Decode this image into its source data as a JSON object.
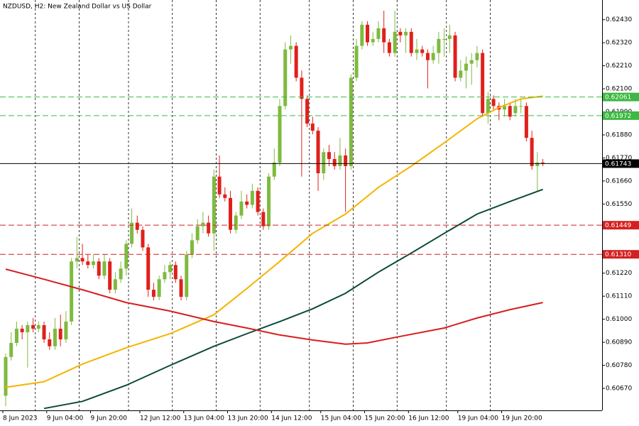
{
  "chart_data": {
    "type": "candlestick",
    "title": "NZDUSD, H2:  New Zealand Dollar vs US Dollar",
    "categories": [
      "8 Jun 2023",
      null,
      null,
      null,
      null,
      null,
      null,
      null,
      "9 Jun 04:00",
      null,
      null,
      null,
      null,
      null,
      null,
      null,
      "9 Jun 20:00",
      null,
      null,
      null,
      null,
      null,
      null,
      null,
      null,
      "12 Jun 12:00",
      null,
      null,
      null,
      null,
      null,
      null,
      null,
      "13 Jun 04:00",
      null,
      null,
      null,
      null,
      null,
      null,
      null,
      "13 Jun 20:00",
      null,
      null,
      null,
      null,
      null,
      null,
      null,
      "14 Jun 12:00",
      null,
      null,
      null,
      null,
      null,
      null,
      null,
      null,
      "15 Jun 04:00",
      null,
      null,
      null,
      null,
      null,
      null,
      null,
      "15 Jun 20:00",
      null,
      null,
      null,
      null,
      null,
      null,
      null,
      "16 Jun 12:00",
      null,
      null,
      null,
      null,
      null,
      null,
      null,
      null,
      "19 Jun 04:00",
      null,
      null,
      null,
      null,
      null,
      null,
      null,
      "19 Jun 20:00",
      null,
      null,
      null,
      null,
      null,
      null,
      null
    ],
    "open": [
      0.60635,
      0.6082,
      0.60887,
      0.60955,
      0.60938,
      0.60972,
      0.60955,
      0.60972,
      0.60904,
      0.60871,
      0.60955,
      0.60904,
      0.60989,
      0.61276,
      0.61292,
      0.61276,
      0.61259,
      0.61276,
      0.61208,
      0.61276,
      0.61141,
      0.61191,
      0.61242,
      0.6136,
      0.61461,
      0.61427,
      0.61343,
      0.61141,
      0.61107,
      0.61191,
      0.61225,
      0.61259,
      0.61191,
      0.61107,
      0.61309,
      0.61377,
      0.61444,
      0.61461,
      0.6141,
      0.61681,
      0.61596,
      0.61579,
      0.61427,
      0.61495,
      0.61562,
      0.61546,
      0.61613,
      0.61512,
      0.61444,
      0.61681,
      0.61748,
      0.62018,
      0.62288,
      0.62305,
      0.62153,
      0.62052,
      0.61934,
      0.619,
      0.61697,
      0.61798,
      0.61765,
      0.61731,
      0.61782,
      0.61731,
      0.62153,
      0.62305,
      0.62406,
      0.62322,
      0.62338,
      0.62389,
      0.62322,
      0.62271,
      0.62372,
      0.62355,
      0.62372,
      0.62271,
      0.62288,
      0.62271,
      0.62237,
      0.62271,
      0.62338,
      0.62338,
      0.62355,
      0.62153,
      0.62187,
      0.6222,
      0.62237,
      0.62271,
      0.61984,
      0.62052,
      0.62018,
      0.62001,
      0.62018,
      0.61984,
      0.62018,
      0.62018,
      0.61866,
      0.61731,
      0.61748
    ],
    "high": [
      0.60837,
      0.60938,
      0.60989,
      0.60972,
      0.60989,
      0.61006,
      0.60989,
      0.60989,
      0.60938,
      0.61006,
      0.61022,
      0.61039,
      0.61292,
      0.61394,
      0.6136,
      0.61309,
      0.61309,
      0.61292,
      0.61309,
      0.61292,
      0.61225,
      0.61276,
      0.61377,
      0.61529,
      0.61495,
      0.61444,
      0.6136,
      0.61174,
      0.61208,
      0.61259,
      0.61276,
      0.61276,
      0.61208,
      0.61326,
      0.6141,
      0.61478,
      0.61512,
      0.61495,
      0.61714,
      0.61782,
      0.6163,
      0.61613,
      0.61512,
      0.61613,
      0.61596,
      0.61647,
      0.6163,
      0.61529,
      0.61697,
      0.61815,
      0.62052,
      0.62322,
      0.62355,
      0.62322,
      0.62187,
      0.62069,
      0.61967,
      0.61917,
      0.61815,
      0.61832,
      0.61798,
      0.61866,
      0.61815,
      0.6217,
      0.62338,
      0.62423,
      0.62423,
      0.62372,
      0.62423,
      0.62473,
      0.62338,
      0.62473,
      0.62389,
      0.62389,
      0.62389,
      0.62338,
      0.62305,
      0.62288,
      0.62305,
      0.62372,
      0.62389,
      0.62406,
      0.62372,
      0.62237,
      0.62254,
      0.62271,
      0.62305,
      0.62288,
      0.62085,
      0.62069,
      0.62035,
      0.62052,
      0.62035,
      0.62052,
      0.62052,
      0.62035,
      0.619,
      0.61798,
      0.61765
    ],
    "low": [
      0.60584,
      0.60803,
      0.60871,
      0.60904,
      0.60769,
      0.60938,
      0.60938,
      0.60887,
      0.60854,
      0.60854,
      0.60871,
      0.60887,
      0.60972,
      0.61242,
      0.61259,
      0.61242,
      0.61242,
      0.61191,
      0.61191,
      0.61124,
      0.61124,
      0.61174,
      0.61208,
      0.61343,
      0.6141,
      0.61326,
      0.61107,
      0.6109,
      0.6109,
      0.61174,
      0.61191,
      0.61174,
      0.6109,
      0.6109,
      0.61292,
      0.6136,
      0.6141,
      0.61394,
      0.61326,
      0.61579,
      0.61562,
      0.6141,
      0.6141,
      0.61478,
      0.61529,
      0.61529,
      0.61495,
      0.61427,
      0.61427,
      0.61664,
      0.61731,
      0.62001,
      0.6222,
      0.62136,
      0.61681,
      0.61917,
      0.61883,
      0.61613,
      0.61664,
      0.61731,
      0.61714,
      0.61714,
      0.61512,
      0.61714,
      0.62136,
      0.62288,
      0.62305,
      0.62305,
      0.62322,
      0.62271,
      0.62254,
      0.62254,
      0.62322,
      0.62271,
      0.62254,
      0.62237,
      0.62254,
      0.62102,
      0.6222,
      0.6222,
      0.62254,
      0.62271,
      0.62136,
      0.62136,
      0.62102,
      0.62119,
      0.62203,
      0.61967,
      0.61934,
      0.62001,
      0.6195,
      0.61967,
      0.6195,
      0.61967,
      0.61984,
      0.61849,
      0.61714,
      0.61613,
      0.61731
    ],
    "close": [
      0.6082,
      0.60887,
      0.60955,
      0.60938,
      0.60972,
      0.60955,
      0.60972,
      0.60904,
      0.60871,
      0.60955,
      0.60904,
      0.60989,
      0.61276,
      0.61292,
      0.61276,
      0.61259,
      0.61276,
      0.61208,
      0.61276,
      0.61141,
      0.61191,
      0.61242,
      0.6136,
      0.61461,
      0.61427,
      0.61343,
      0.61141,
      0.61107,
      0.61191,
      0.61225,
      0.61259,
      0.61191,
      0.61107,
      0.61309,
      0.61377,
      0.61444,
      0.61461,
      0.6141,
      0.61681,
      0.61596,
      0.61579,
      0.61427,
      0.61495,
      0.61562,
      0.61546,
      0.61613,
      0.61512,
      0.61444,
      0.61681,
      0.61748,
      0.62018,
      0.62288,
      0.62305,
      0.62153,
      0.62052,
      0.61934,
      0.619,
      0.61697,
      0.61798,
      0.61765,
      0.61731,
      0.61782,
      0.61731,
      0.62153,
      0.62305,
      0.62406,
      0.62322,
      0.62338,
      0.62389,
      0.62322,
      0.62271,
      0.62372,
      0.62355,
      0.62372,
      0.62271,
      0.62288,
      0.62271,
      0.62237,
      0.62271,
      0.62338,
      0.62338,
      0.62355,
      0.62153,
      0.62187,
      0.6222,
      0.62237,
      0.62271,
      0.61984,
      0.62052,
      0.62018,
      0.62001,
      0.62018,
      0.61967,
      0.62018,
      0.62018,
      0.61866,
      0.61731,
      0.61748,
      0.61743
    ],
    "up_color": "#7fba3f",
    "down_color": "#e0201b",
    "lines": [
      {
        "color": "#f5b400",
        "x": [
          0,
          7,
          14,
          22,
          30,
          38,
          44,
          50,
          56,
          62,
          68,
          74,
          80,
          86,
          90,
          94,
          98
        ],
        "values": [
          0.60675,
          0.60702,
          0.60786,
          0.60864,
          0.60931,
          0.61022,
          0.61147,
          0.61276,
          0.6141,
          0.61502,
          0.6163,
          0.61731,
          0.61842,
          0.61957,
          0.62011,
          0.62052,
          0.62065
        ]
      },
      {
        "color": "#0b4a3a",
        "x": [
          7,
          14,
          22,
          30,
          38,
          44,
          50,
          56,
          62,
          68,
          74,
          80,
          86,
          92,
          98
        ],
        "values": [
          0.60574,
          0.60608,
          0.60685,
          0.6078,
          0.60871,
          0.60931,
          0.60989,
          0.6105,
          0.61124,
          0.61225,
          0.61316,
          0.6141,
          0.61502,
          0.61562,
          0.6162
        ]
      },
      {
        "color": "#d81e1e",
        "x": [
          0,
          7,
          14,
          22,
          30,
          38,
          44,
          50,
          56,
          62,
          66,
          72,
          80,
          86,
          92,
          98
        ],
        "values": [
          0.61239,
          0.61191,
          0.61141,
          0.6108,
          0.61039,
          0.60989,
          0.60958,
          0.60925,
          0.60901,
          0.60881,
          0.60887,
          0.60918,
          0.60958,
          0.61006,
          0.61046,
          0.6108
        ]
      }
    ],
    "levels": [
      {
        "value": 0.62061,
        "color": "#3cb843",
        "style": "dashed"
      },
      {
        "value": 0.61972,
        "color": "#3cb843",
        "style": "dashed"
      },
      {
        "value": 0.61449,
        "color": "#d42020",
        "style": "dashed"
      },
      {
        "value": 0.6131,
        "label": "0.61310",
        "color": "#d42020",
        "style": "dashed"
      },
      {
        "value": 0.61743,
        "color": "#000000",
        "style": "solid"
      }
    ],
    "ylim": [
      0.60565,
      0.62524
    ],
    "yticks": [
      {
        "value": 0.6243,
        "label": "0.62430"
      },
      {
        "value": 0.6232,
        "label": "0.62320"
      },
      {
        "value": 0.6221,
        "label": "0.62210"
      },
      {
        "value": 0.621,
        "label": "0.62100"
      },
      {
        "value": 0.6199,
        "label": "0.61990"
      },
      {
        "value": 0.6188,
        "label": "0.61880"
      },
      {
        "value": 0.6177,
        "label": "0.61770"
      },
      {
        "value": 0.6166,
        "label": "0.61660"
      },
      {
        "value": 0.6155,
        "label": "0.61550"
      },
      {
        "value": 0.6122,
        "label": "0.61220"
      },
      {
        "value": 0.6111,
        "label": "0.61110"
      },
      {
        "value": 0.61,
        "label": "0.61000"
      },
      {
        "value": 0.6089,
        "label": "0.60890"
      },
      {
        "value": 0.6078,
        "label": "0.60780"
      },
      {
        "value": 0.6067,
        "label": "0.60670"
      }
    ],
    "x_grid": true
  }
}
